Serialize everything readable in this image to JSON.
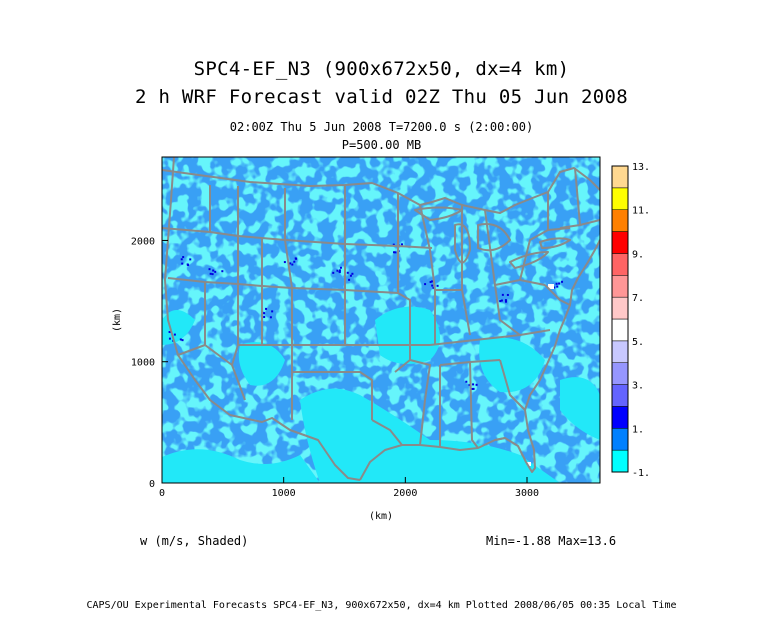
{
  "title": {
    "line1": "SPC4-EF_N3 (900x672x50, dx=4 km)",
    "line2": "2 h WRF Forecast valid 02Z Thu 05 Jun 2008"
  },
  "subtitle": {
    "line1": "02:00Z Thu  5 Jun 2008    T=7200.0 s (2:00:00)",
    "line2": "P=500.00 MB"
  },
  "field_label": "w (m/s, Shaded)",
  "minmax": "Min=-1.88 Max=13.6",
  "footer": "CAPS/OU Experimental Forecasts  SPC4-EF_N3, 900x672x50, dx=4 km  Plotted 2008/06/05 00:35 Local Time",
  "axes": {
    "x_label": "(km)",
    "y_label": "(km)",
    "x_ticks": [
      "0",
      "1000",
      "2000",
      "3000"
    ],
    "y_ticks": [
      "0",
      "1000",
      "2000"
    ],
    "x_range": [
      0,
      3600
    ],
    "y_range": [
      0,
      2688
    ]
  },
  "colorbar": {
    "labels": [
      "-1.",
      "1.",
      "3.",
      "5.",
      "7.",
      "9.",
      "11.",
      "13."
    ],
    "colors": [
      "#00ffff",
      "#0080ff",
      "#0000ff",
      "#6464ff",
      "#9696ff",
      "#c8c8ff",
      "#ffffff",
      "#ffc8c8",
      "#ff9696",
      "#ff6464",
      "#ff0000",
      "#ff8000",
      "#ffff00",
      "#ffd890"
    ]
  },
  "map_colors": {
    "background": "#39a0f5",
    "light": "#22e8f8",
    "boundary": "#8a8a8a"
  }
}
